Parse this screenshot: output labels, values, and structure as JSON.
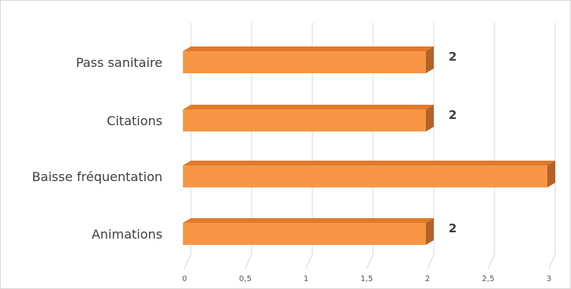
{
  "chart_data": {
    "type": "bar",
    "orientation": "horizontal",
    "style": "3d",
    "categories": [
      "Pass sanitaire",
      "Citations",
      "Baisse fréquentation",
      "Animations"
    ],
    "values": [
      2,
      2,
      3,
      2
    ],
    "data_labels": [
      "2",
      "2",
      "",
      "2"
    ],
    "xlim": [
      0,
      3
    ],
    "x_ticks": [
      "0",
      "0,5",
      "1",
      "1,5",
      "2",
      "2,5",
      "3"
    ],
    "grid": true,
    "legend": "none",
    "colors": {
      "bar_front": "#F79646",
      "bar_top": "#E07A2A",
      "bar_side": "#B5612A",
      "gridline": "#D9D9D9"
    }
  }
}
